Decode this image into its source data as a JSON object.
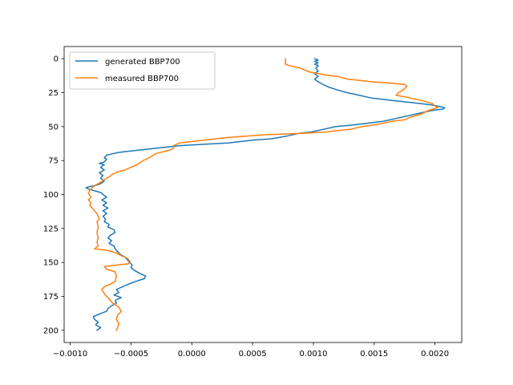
{
  "chart_data": {
    "type": "line",
    "title": "",
    "xlabel": "",
    "ylabel": "",
    "xlim": [
      -0.00105,
      0.00222
    ],
    "ylim": [
      209,
      -9
    ],
    "y_inverted": true,
    "grid": false,
    "legend": {
      "placement": "top-left"
    },
    "x_ticks": [
      {
        "value": -0.001,
        "label": "−0.0010"
      },
      {
        "value": -0.0005,
        "label": "−0.0005"
      },
      {
        "value": 0.0,
        "label": "0.0000"
      },
      {
        "value": 0.0005,
        "label": "0.0005"
      },
      {
        "value": 0.001,
        "label": "0.0010"
      },
      {
        "value": 0.0015,
        "label": "0.0015"
      },
      {
        "value": 0.002,
        "label": "0.0020"
      }
    ],
    "y_ticks": [
      {
        "value": 0,
        "label": "0"
      },
      {
        "value": 25,
        "label": "25"
      },
      {
        "value": 50,
        "label": "50"
      },
      {
        "value": 75,
        "label": "75"
      },
      {
        "value": 100,
        "label": "100"
      },
      {
        "value": 125,
        "label": "125"
      },
      {
        "value": 150,
        "label": "150"
      },
      {
        "value": 175,
        "label": "175"
      },
      {
        "value": 200,
        "label": "200"
      }
    ],
    "series": [
      {
        "name": "generated BBP700",
        "color": "#1f77b4",
        "points": [
          [
            0.00101,
            0
          ],
          [
            0.00104,
            1
          ],
          [
            0.00101,
            2
          ],
          [
            0.00104,
            3
          ],
          [
            0.00101,
            4
          ],
          [
            0.00104,
            5
          ],
          [
            0.00102,
            7
          ],
          [
            0.00104,
            9
          ],
          [
            0.00101,
            11
          ],
          [
            0.00104,
            13
          ],
          [
            0.00101,
            15
          ],
          [
            0.00104,
            17
          ],
          [
            0.00108,
            19
          ],
          [
            0.00113,
            21
          ],
          [
            0.0012,
            23
          ],
          [
            0.00128,
            25
          ],
          [
            0.00138,
            27
          ],
          [
            0.00148,
            29
          ],
          [
            0.00158,
            30
          ],
          [
            0.00168,
            31
          ],
          [
            0.00178,
            32
          ],
          [
            0.00188,
            33
          ],
          [
            0.00197,
            34
          ],
          [
            0.00203,
            35
          ],
          [
            0.00208,
            36
          ],
          [
            0.00207,
            37
          ],
          [
            0.00198,
            38
          ],
          [
            0.00188,
            40
          ],
          [
            0.00178,
            42
          ],
          [
            0.00168,
            44
          ],
          [
            0.00158,
            46
          ],
          [
            0.0014,
            48
          ],
          [
            0.0013,
            49
          ],
          [
            0.00118,
            50
          ],
          [
            0.00108,
            52
          ],
          [
            0.00098,
            54
          ],
          [
            0.00088,
            55
          ],
          [
            0.00078,
            57
          ],
          [
            0.00065,
            59
          ],
          [
            0.0005,
            60
          ],
          [
            0.0003,
            62
          ],
          [
            0.0001,
            63
          ],
          [
            -0.0001,
            64
          ],
          [
            -0.0003,
            66
          ],
          [
            -0.0004,
            67
          ],
          [
            -0.0005,
            68
          ],
          [
            -0.0006,
            69
          ],
          [
            -0.00065,
            70
          ],
          [
            -0.0007,
            71
          ],
          [
            -0.00072,
            73
          ],
          [
            -0.0007,
            74
          ],
          [
            -0.00072,
            76
          ],
          [
            -0.00076,
            77
          ],
          [
            -0.00072,
            78
          ],
          [
            -0.00075,
            80
          ],
          [
            -0.00072,
            82
          ],
          [
            -0.00076,
            84
          ],
          [
            -0.00073,
            86
          ],
          [
            -0.00075,
            88
          ],
          [
            -0.00072,
            90
          ],
          [
            -0.00075,
            92
          ],
          [
            -0.00078,
            93
          ],
          [
            -0.00083,
            94
          ],
          [
            -0.00087,
            95
          ],
          [
            -0.00085,
            96
          ],
          [
            -0.00081,
            97
          ],
          [
            -0.00077,
            98
          ],
          [
            -0.00074,
            99
          ],
          [
            -0.00073,
            100
          ],
          [
            -0.0007,
            102
          ],
          [
            -0.00074,
            104
          ],
          [
            -0.0007,
            106
          ],
          [
            -0.00073,
            108
          ],
          [
            -0.00069,
            110
          ],
          [
            -0.00073,
            112
          ],
          [
            -0.0007,
            114
          ],
          [
            -0.00073,
            116
          ],
          [
            -0.00071,
            118
          ],
          [
            -0.00072,
            120
          ],
          [
            -0.00068,
            122
          ],
          [
            -0.00069,
            124
          ],
          [
            -0.00064,
            126
          ],
          [
            -0.00063,
            128
          ],
          [
            -0.00067,
            130
          ],
          [
            -0.00069,
            132
          ],
          [
            -0.00066,
            134
          ],
          [
            -0.00068,
            136
          ],
          [
            -0.00064,
            138
          ],
          [
            -0.00063,
            140
          ],
          [
            -0.00061,
            142
          ],
          [
            -0.00059,
            144
          ],
          [
            -0.00055,
            146
          ],
          [
            -0.00053,
            148
          ],
          [
            -0.00051,
            150
          ],
          [
            -0.00049,
            152
          ],
          [
            -0.0005,
            154
          ],
          [
            -0.00047,
            156
          ],
          [
            -0.00043,
            158
          ],
          [
            -0.00038,
            160
          ],
          [
            -0.00039,
            162
          ],
          [
            -0.00046,
            164
          ],
          [
            -0.00052,
            166
          ],
          [
            -0.00057,
            168
          ],
          [
            -0.00062,
            170
          ],
          [
            -0.0006,
            172
          ],
          [
            -0.00064,
            174
          ],
          [
            -0.00058,
            176
          ],
          [
            -0.00063,
            178
          ],
          [
            -0.00062,
            180
          ],
          [
            -0.00066,
            182
          ],
          [
            -0.00069,
            184
          ],
          [
            -0.0007,
            186
          ],
          [
            -0.00076,
            188
          ],
          [
            -0.00081,
            190
          ],
          [
            -0.0008,
            192
          ],
          [
            -0.00077,
            194
          ],
          [
            -0.00079,
            196
          ],
          [
            -0.00075,
            198
          ],
          [
            -0.00078,
            200
          ]
        ]
      },
      {
        "name": "measured BBP700",
        "color": "#ff7f0e",
        "points": [
          [
            0.00077,
            0
          ],
          [
            0.00077,
            2
          ],
          [
            0.00077,
            4
          ],
          [
            0.0008,
            5
          ],
          [
            0.00085,
            6
          ],
          [
            0.0009,
            7
          ],
          [
            0.00092,
            8
          ],
          [
            0.00095,
            9
          ],
          [
            0.00098,
            10
          ],
          [
            0.00105,
            11
          ],
          [
            0.0011,
            12
          ],
          [
            0.0012,
            13
          ],
          [
            0.00128,
            15
          ],
          [
            0.00138,
            16
          ],
          [
            0.00148,
            17
          ],
          [
            0.00165,
            18
          ],
          [
            0.00175,
            19
          ],
          [
            0.00177,
            20
          ],
          [
            0.00175,
            22
          ],
          [
            0.00172,
            24
          ],
          [
            0.0017,
            25
          ],
          [
            0.00168,
            27
          ],
          [
            0.00175,
            28
          ],
          [
            0.0018,
            29
          ],
          [
            0.0019,
            31
          ],
          [
            0.00198,
            33
          ],
          [
            0.00199,
            34
          ],
          [
            0.00202,
            36
          ],
          [
            0.00195,
            38
          ],
          [
            0.00188,
            41
          ],
          [
            0.0018,
            43
          ],
          [
            0.00175,
            45
          ],
          [
            0.00165,
            46
          ],
          [
            0.00155,
            48
          ],
          [
            0.0014,
            50
          ],
          [
            0.0013,
            52
          ],
          [
            0.0012,
            53
          ],
          [
            0.0011,
            54
          ],
          [
            0.0009,
            55
          ],
          [
            0.0006,
            56
          ],
          [
            0.0003,
            58
          ],
          [
            0.0001,
            60
          ],
          [
            -0.0001,
            62
          ],
          [
            -0.00015,
            64
          ],
          [
            -0.00015,
            66
          ],
          [
            -0.00017,
            67
          ],
          [
            -0.0003,
            70
          ],
          [
            -0.00035,
            73
          ],
          [
            -0.0004,
            75
          ],
          [
            -0.00045,
            78
          ],
          [
            -0.0005,
            80
          ],
          [
            -0.00055,
            82
          ],
          [
            -0.0006,
            83
          ],
          [
            -0.00065,
            85
          ],
          [
            -0.00068,
            87
          ],
          [
            -0.00072,
            89
          ],
          [
            -0.00075,
            91
          ],
          [
            -0.00079,
            93
          ],
          [
            -0.00082,
            95
          ],
          [
            -0.00084,
            97
          ],
          [
            -0.00085,
            99
          ],
          [
            -0.00083,
            102
          ],
          [
            -0.00085,
            104
          ],
          [
            -0.00083,
            106
          ],
          [
            -0.00084,
            108
          ],
          [
            -0.00082,
            110
          ],
          [
            -0.0008,
            112
          ],
          [
            -0.00078,
            114
          ],
          [
            -0.00077,
            116
          ],
          [
            -0.00076,
            118
          ],
          [
            -0.00078,
            120
          ],
          [
            -0.00077,
            124
          ],
          [
            -0.00078,
            128
          ],
          [
            -0.00077,
            132
          ],
          [
            -0.00078,
            135
          ],
          [
            -0.00077,
            138
          ],
          [
            -0.0008,
            140
          ],
          [
            -0.0007,
            141
          ],
          [
            -0.00062,
            143
          ],
          [
            -0.00058,
            145
          ],
          [
            -0.00053,
            147
          ],
          [
            -0.00051,
            149
          ],
          [
            -0.00052,
            151
          ],
          [
            -0.00062,
            152
          ],
          [
            -0.00072,
            153
          ],
          [
            -0.0007,
            155
          ],
          [
            -0.00063,
            157
          ],
          [
            -0.00062,
            160
          ],
          [
            -0.00063,
            164
          ],
          [
            -0.00067,
            166
          ],
          [
            -0.00072,
            168
          ],
          [
            -0.00074,
            170
          ],
          [
            -0.00072,
            173
          ],
          [
            -0.00069,
            176
          ],
          [
            -0.00065,
            180
          ],
          [
            -0.0006,
            183
          ],
          [
            -0.00058,
            186
          ],
          [
            -0.00061,
            189
          ],
          [
            -0.00062,
            192
          ],
          [
            -0.0006,
            195
          ],
          [
            -0.00061,
            198
          ],
          [
            -0.00062,
            200
          ]
        ]
      }
    ]
  }
}
